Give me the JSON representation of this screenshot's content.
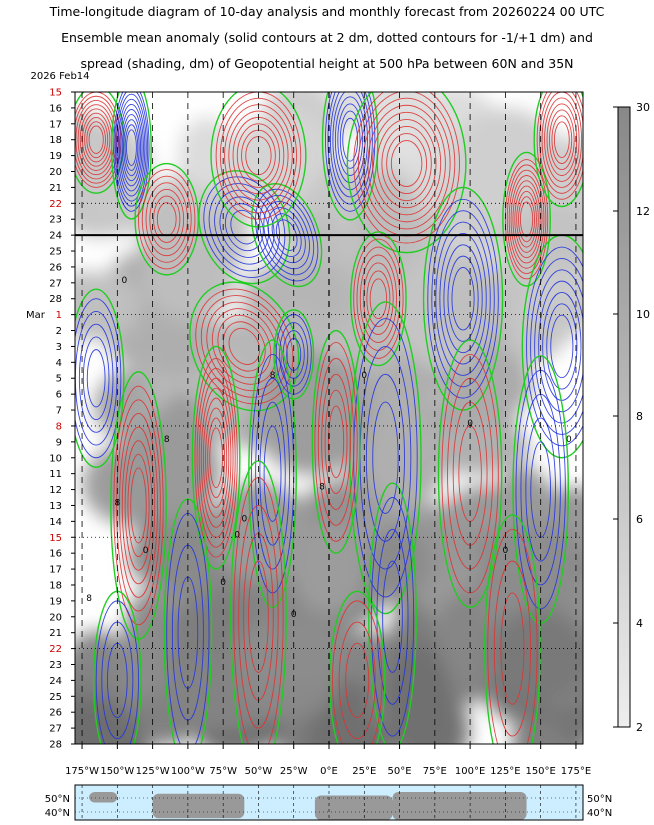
{
  "title": {
    "line1": "Time-longitude diagram of 10-day analysis and monthly forecast from 20260224 00 UTC",
    "line2": "Ensemble mean anomaly (solid contours at 2 dm, dotted contours for -1/+1 dm) and",
    "line3": "spread (shading, dm) of Geopotential height at 500 hPa between 60N and 35N"
  },
  "chart_data": {
    "type": "heatmap",
    "x_axis": {
      "range": [
        -180,
        180
      ],
      "tick_values": [
        -175,
        -150,
        -125,
        -100,
        -75,
        -50,
        -25,
        0,
        25,
        50,
        75,
        100,
        125,
        150,
        175
      ],
      "tick_labels": [
        "175°W",
        "150°W",
        "125°W",
        "100°W",
        "75°W",
        "50°W",
        "25°W",
        "0°E",
        "25°E",
        "50°E",
        "75°E",
        "100°E",
        "125°E",
        "150°E",
        "175°E"
      ]
    },
    "y_axis": {
      "start_label": "2026 Feb14",
      "days": [
        {
          "label": "15",
          "weekend": true
        },
        {
          "label": "16",
          "weekend": false
        },
        {
          "label": "17",
          "weekend": false
        },
        {
          "label": "18",
          "weekend": false
        },
        {
          "label": "19",
          "weekend": false
        },
        {
          "label": "20",
          "weekend": false
        },
        {
          "label": "21",
          "weekend": false
        },
        {
          "label": "22",
          "weekend": true
        },
        {
          "label": "23",
          "weekend": false
        },
        {
          "label": "24",
          "weekend": false
        },
        {
          "label": "25",
          "weekend": false
        },
        {
          "label": "26",
          "weekend": false
        },
        {
          "label": "27",
          "weekend": false
        },
        {
          "label": "28",
          "weekend": false
        },
        {
          "label": "1",
          "weekend": true,
          "month": "Mar"
        },
        {
          "label": "2",
          "weekend": false
        },
        {
          "label": "3",
          "weekend": false
        },
        {
          "label": "4",
          "weekend": false
        },
        {
          "label": "5",
          "weekend": false
        },
        {
          "label": "6",
          "weekend": false
        },
        {
          "label": "7",
          "weekend": false
        },
        {
          "label": "8",
          "weekend": true
        },
        {
          "label": "9",
          "weekend": false
        },
        {
          "label": "10",
          "weekend": false
        },
        {
          "label": "11",
          "weekend": false
        },
        {
          "label": "12",
          "weekend": false
        },
        {
          "label": "13",
          "weekend": false
        },
        {
          "label": "14",
          "weekend": false
        },
        {
          "label": "15",
          "weekend": true
        },
        {
          "label": "16",
          "weekend": false
        },
        {
          "label": "17",
          "weekend": false
        },
        {
          "label": "18",
          "weekend": false
        },
        {
          "label": "19",
          "weekend": false
        },
        {
          "label": "20",
          "weekend": false
        },
        {
          "label": "21",
          "weekend": false
        },
        {
          "label": "22",
          "weekend": true
        },
        {
          "label": "23",
          "weekend": false
        },
        {
          "label": "24",
          "weekend": false
        },
        {
          "label": "25",
          "weekend": false
        },
        {
          "label": "26",
          "weekend": false
        },
        {
          "label": "27",
          "weekend": false
        },
        {
          "label": "28",
          "weekend": false
        }
      ],
      "forecast_start_day": "24"
    },
    "colorbar": {
      "ticks": [
        "2",
        "4",
        "6",
        "8",
        "10",
        "12",
        "30"
      ],
      "unit": "dm"
    },
    "contour_labels": [
      "0",
      "0",
      "0",
      "0",
      "0",
      "0",
      "0",
      "8",
      "8",
      "8",
      "8",
      "8",
      "0",
      "0",
      "0"
    ],
    "map_strip": {
      "lat_labels": [
        "50°N",
        "40°N"
      ]
    },
    "colors": {
      "positive": "#dd3333",
      "negative": "#2233dd",
      "zero": "#22cc22",
      "shade_light": "#e6e6e6",
      "shade_dark": "#8c8c8c",
      "ocean": "#cceeff",
      "land": "#999999"
    }
  }
}
